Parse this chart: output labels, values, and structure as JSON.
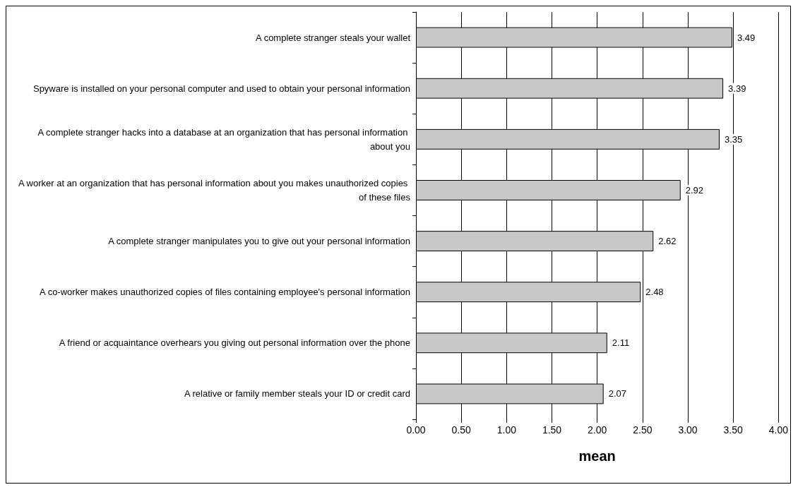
{
  "chart_data": {
    "type": "bar",
    "orientation": "horizontal",
    "xlabel": "mean",
    "categories": [
      "A complete stranger steals your wallet",
      "Spyware is installed on your personal computer and used to obtain your personal information",
      "A complete stranger hacks into a database at an organization that has personal information about you",
      "A worker at an organization that has personal information about you makes unauthorized copies of these files",
      "A complete stranger manipulates you to give out your personal information",
      "A co-worker makes unauthorized copies of files containing employee's personal information",
      "A friend or acquaintance overhears you giving out personal information over the phone",
      "A relative or family member steals your ID or credit card"
    ],
    "values": [
      3.49,
      3.39,
      3.35,
      2.92,
      2.62,
      2.48,
      2.11,
      2.07
    ],
    "color": "#c8c8c8",
    "xlim": [
      0,
      4
    ],
    "xticks": [
      {
        "value": 0,
        "label": "0.00"
      },
      {
        "value": 0.5,
        "label": "0.50"
      },
      {
        "value": 1,
        "label": "1.00"
      },
      {
        "value": 1.5,
        "label": "1.50"
      },
      {
        "value": 2,
        "label": "2.00"
      },
      {
        "value": 2.5,
        "label": "2.50"
      },
      {
        "value": 3,
        "label": "3.00"
      },
      {
        "value": 3.5,
        "label": "3.50"
      },
      {
        "value": 4,
        "label": "4.00"
      }
    ],
    "grid": "x",
    "data_labels": true
  }
}
